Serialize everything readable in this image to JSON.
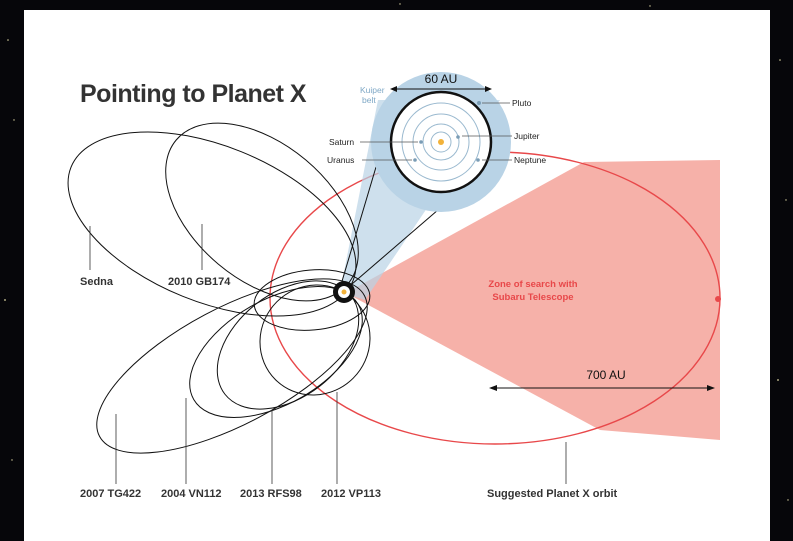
{
  "title": "Pointing to Planet X",
  "inset": {
    "scale_label": "60 AU",
    "kuiper_label_line1": "Kuiper",
    "kuiper_label_line2": "belt",
    "planets": [
      "Pluto",
      "Jupiter",
      "Neptune",
      "Saturn",
      "Uranus"
    ]
  },
  "zone_label_line1": "Zone of search with",
  "zone_label_line2": "Subaru Telescope",
  "scale_700": "700 AU",
  "objects": {
    "sedna": "Sedna",
    "gb174": "2010 GB174",
    "tg422": "2007 TG422",
    "vn112": "2004 VN112",
    "rfs98": "2013 RFS98",
    "vp113": "2012 VP113",
    "planet_x": "Suggested Planet X orbit"
  },
  "colors": {
    "orbit_red": "#e8484a",
    "zone_fill": "#f4a39a",
    "kuiper_fill": "#b9d3e6"
  }
}
